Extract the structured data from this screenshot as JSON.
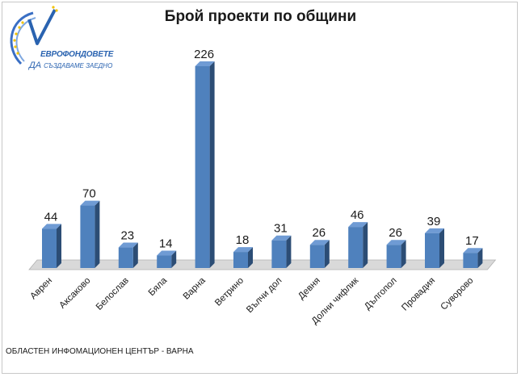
{
  "title": "Брой проекти по общини",
  "footer": "ОБЛАСТЕН ИНФОМАЦИОНЕН ЦЕНТЪР - ВАРНА",
  "logo": {
    "line1": "ЕВРОФОНДОВЕТЕ",
    "line2_prefix": "ДА",
    "line2_suffix": "СЪЗДАВАМЕ ЗАЕДНО",
    "icon": "eurofunds-logo-icon"
  },
  "colors": {
    "bar_front": "#4f81bd",
    "bar_side": "#2c4d75",
    "bar_top": "#6f9bd4",
    "floor": "#d9d9d9"
  },
  "chart_data": {
    "type": "bar",
    "title": "Брой проекти по общини",
    "categories": [
      "Аврен",
      "Аксаково",
      "Белослав",
      "Бяла",
      "Варна",
      "Ветрино",
      "Вълчи дол",
      "Девня",
      "Долни чифлик",
      "Дългопол",
      "Провадия",
      "Суворово"
    ],
    "values": [
      44,
      70,
      23,
      14,
      226,
      18,
      31,
      26,
      46,
      26,
      39,
      17
    ],
    "xlabel": "",
    "ylabel": "",
    "ylim": [
      0,
      226
    ],
    "grid": false,
    "legend": "none",
    "style": "3d-column"
  }
}
